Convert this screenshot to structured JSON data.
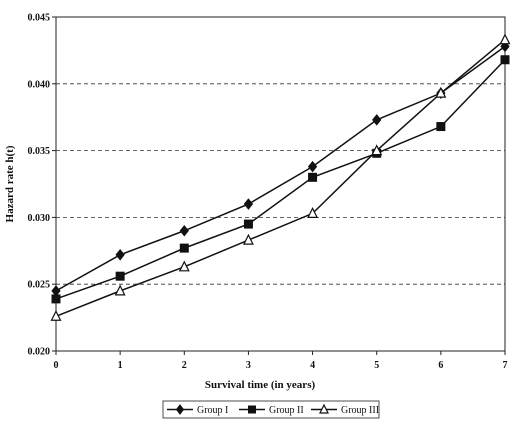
{
  "chart_data": {
    "type": "line",
    "title": "",
    "xlabel": "Survival time (in years)",
    "ylabel": "Hazard rate h(t)",
    "x": [
      0,
      1,
      2,
      3,
      4,
      5,
      6,
      7
    ],
    "xticks": [
      "0",
      "1",
      "2",
      "3",
      "4",
      "5",
      "6",
      "7"
    ],
    "ylim": [
      0.02,
      0.045
    ],
    "yticks": [
      "0.020",
      "0.025",
      "0.030",
      "0.035",
      "0.040",
      "0.045"
    ],
    "ytick_values": [
      0.02,
      0.025,
      0.03,
      0.035,
      0.04,
      0.045
    ],
    "grid": "horizontal-dashed",
    "legend_position": "bottom-center",
    "series": [
      {
        "name": "Group I",
        "marker": "diamond",
        "values": [
          0.0245,
          0.0272,
          0.029,
          0.031,
          0.0338,
          0.0373,
          0.0393,
          0.0428
        ]
      },
      {
        "name": "Group II",
        "marker": "square",
        "values": [
          0.0239,
          0.0256,
          0.0277,
          0.0295,
          0.033,
          0.0348,
          0.0368,
          0.0418
        ]
      },
      {
        "name": "Group III",
        "marker": "triangle",
        "values": [
          0.0226,
          0.0245,
          0.0263,
          0.0283,
          0.0303,
          0.035,
          0.0393,
          0.0433
        ]
      }
    ]
  }
}
